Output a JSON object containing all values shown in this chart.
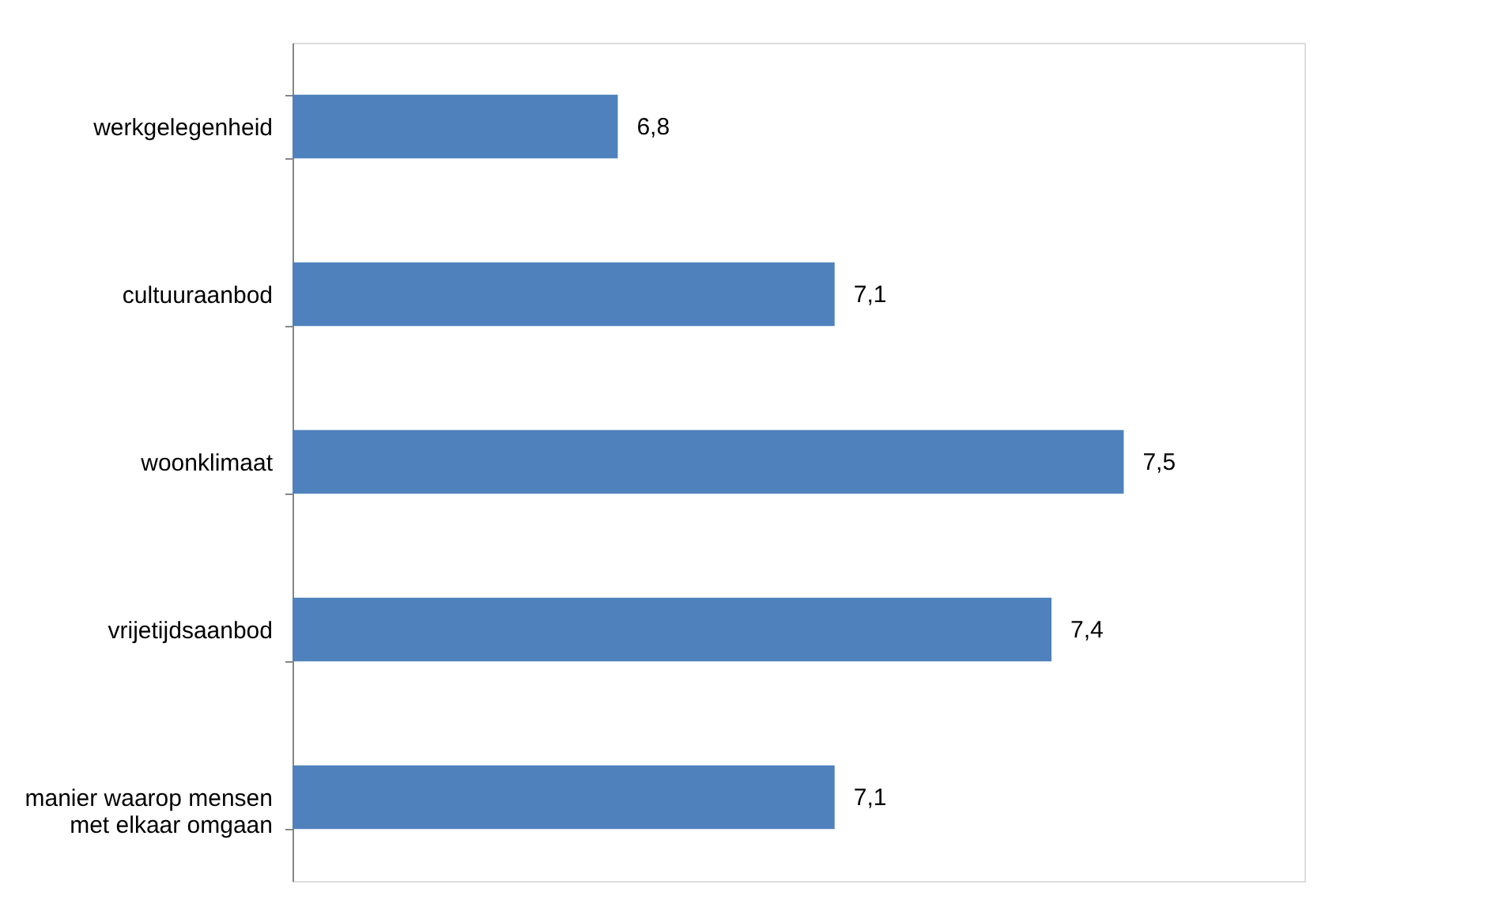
{
  "chart_data": {
    "type": "bar",
    "orientation": "horizontal",
    "categories": [
      "werkgelegenheid",
      "cultuuraanbod",
      "woonklimaat",
      "vrijetijdsaanbod",
      "manier waarop mensen met elkaar omgaan"
    ],
    "values": [
      6.8,
      7.1,
      7.5,
      7.4,
      7.1
    ],
    "value_labels": [
      "6,8",
      "7,1",
      "7,5",
      "7,4",
      "7,1"
    ],
    "color": "#4f81bd",
    "xlim": [
      6.35,
      7.75
    ],
    "tick_labels": "y",
    "grid": false
  }
}
